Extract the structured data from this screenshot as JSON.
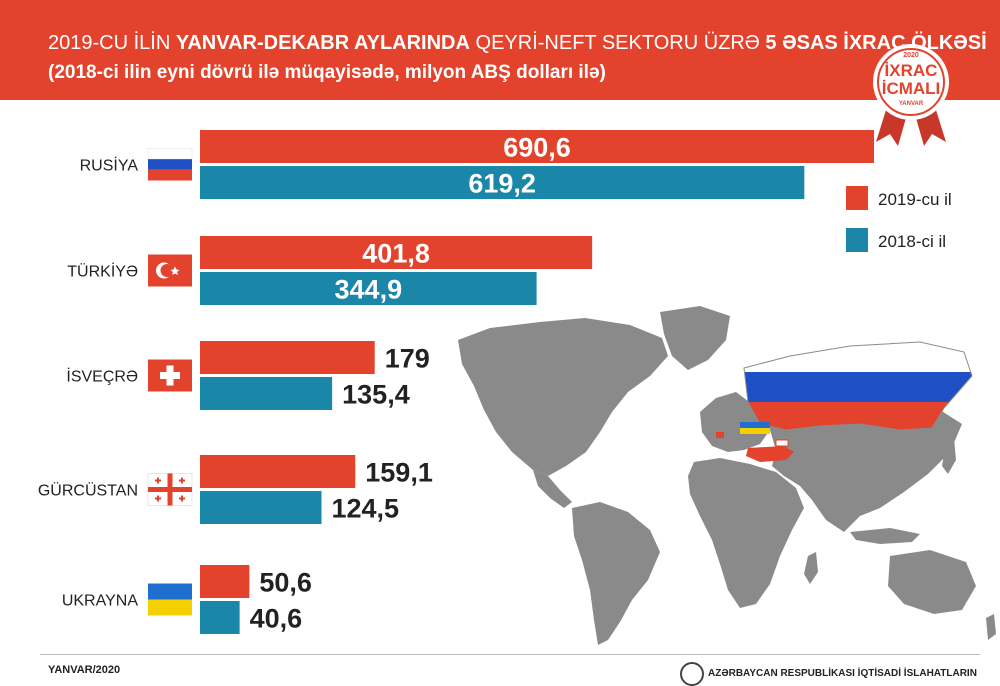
{
  "header": {
    "title_part1": "2019-CU İLİN ",
    "title_bold1": "YANVAR-DEKABR AYLARINDA",
    "title_part2": "  QEYRİ-NEFT SEKTORU ÜZRƏ ",
    "title_bold2": "5 ƏSAS İXRAC ÖLKƏSİ",
    "subtitle": "(2018-ci ilin eyni dövrü ilə müqayisədə, milyon ABŞ dolları ilə)"
  },
  "badge": {
    "year": "2020",
    "line1": "İXRAC",
    "line2": "İCMALI",
    "month": "YANVAR"
  },
  "colors": {
    "header": "#e3432d",
    "series_2019": "#e3432d",
    "series_2018": "#1a87a8",
    "map_land": "#8a8a8a",
    "russia_white": "#ffffff",
    "russia_blue": "#1f4fc4",
    "russia_red": "#e3432d"
  },
  "chart_data": {
    "type": "bar",
    "orientation": "horizontal",
    "categories": [
      "RUSİYA",
      "TÜRKİYƏ",
      "İSVEÇRƏ",
      "GÜRCÜSTAN",
      "UKRAYNA"
    ],
    "series": [
      {
        "name": "2019-cu il",
        "values": [
          690.6,
          401.8,
          179,
          159.1,
          50.6
        ],
        "labels": [
          "690,6",
          "401,8",
          "179",
          "159,1",
          "50,6"
        ]
      },
      {
        "name": "2018-ci il",
        "values": [
          619.2,
          344.9,
          135.4,
          124.5,
          40.6
        ],
        "labels": [
          "619,2",
          "344,9",
          "135,4",
          "124,5",
          "40,6"
        ]
      }
    ],
    "legend_position": "top-right",
    "grid": false
  },
  "footer": {
    "date": "YANVAR/2020",
    "org": "AZƏRBAYCAN RESPUBLİKASI İQTİSADİ İSLAHATLARIN"
  }
}
